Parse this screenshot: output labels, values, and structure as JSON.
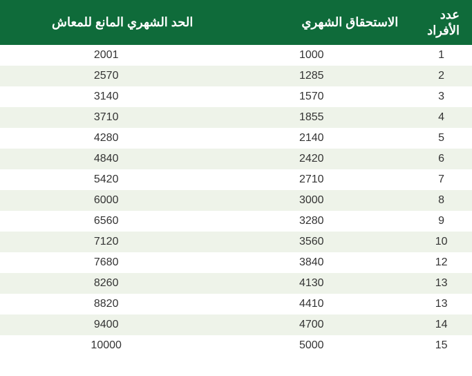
{
  "table": {
    "type": "table",
    "header_bg": "#0f6b3a",
    "header_color": "#ffffff",
    "row_odd_bg": "#ffffff",
    "row_even_bg": "#eef3e9",
    "cell_color": "#333333",
    "header_fontsize": 18,
    "cell_fontsize": 16,
    "columns": [
      {
        "key": "count",
        "label": "عدد\nالأفراد",
        "width_pct": 13,
        "align": "right"
      },
      {
        "key": "entitlement",
        "label": "الاستحقاق الشهري",
        "width_pct": 42,
        "align": "right"
      },
      {
        "key": "limit",
        "label": "الحد الشهري المانع للمعاش",
        "width_pct": 45,
        "align": "right"
      }
    ],
    "rows": [
      {
        "count": "1",
        "entitlement": "1000",
        "limit": "2001"
      },
      {
        "count": "2",
        "entitlement": "1285",
        "limit": "2570"
      },
      {
        "count": "3",
        "entitlement": "1570",
        "limit": "3140"
      },
      {
        "count": "4",
        "entitlement": "1855",
        "limit": "3710"
      },
      {
        "count": "5",
        "entitlement": "2140",
        "limit": "4280"
      },
      {
        "count": "6",
        "entitlement": "2420",
        "limit": "4840"
      },
      {
        "count": "7",
        "entitlement": "2710",
        "limit": "5420"
      },
      {
        "count": "8",
        "entitlement": "3000",
        "limit": "6000"
      },
      {
        "count": "9",
        "entitlement": "3280",
        "limit": "6560"
      },
      {
        "count": "10",
        "entitlement": "3560",
        "limit": "7120"
      },
      {
        "count": "12",
        "entitlement": "3840",
        "limit": "7680"
      },
      {
        "count": "13",
        "entitlement": "4130",
        "limit": "8260"
      },
      {
        "count": "13",
        "entitlement": "4410",
        "limit": "8820"
      },
      {
        "count": "14",
        "entitlement": "4700",
        "limit": "9400"
      },
      {
        "count": "15",
        "entitlement": "5000",
        "limit": "10000"
      }
    ]
  }
}
